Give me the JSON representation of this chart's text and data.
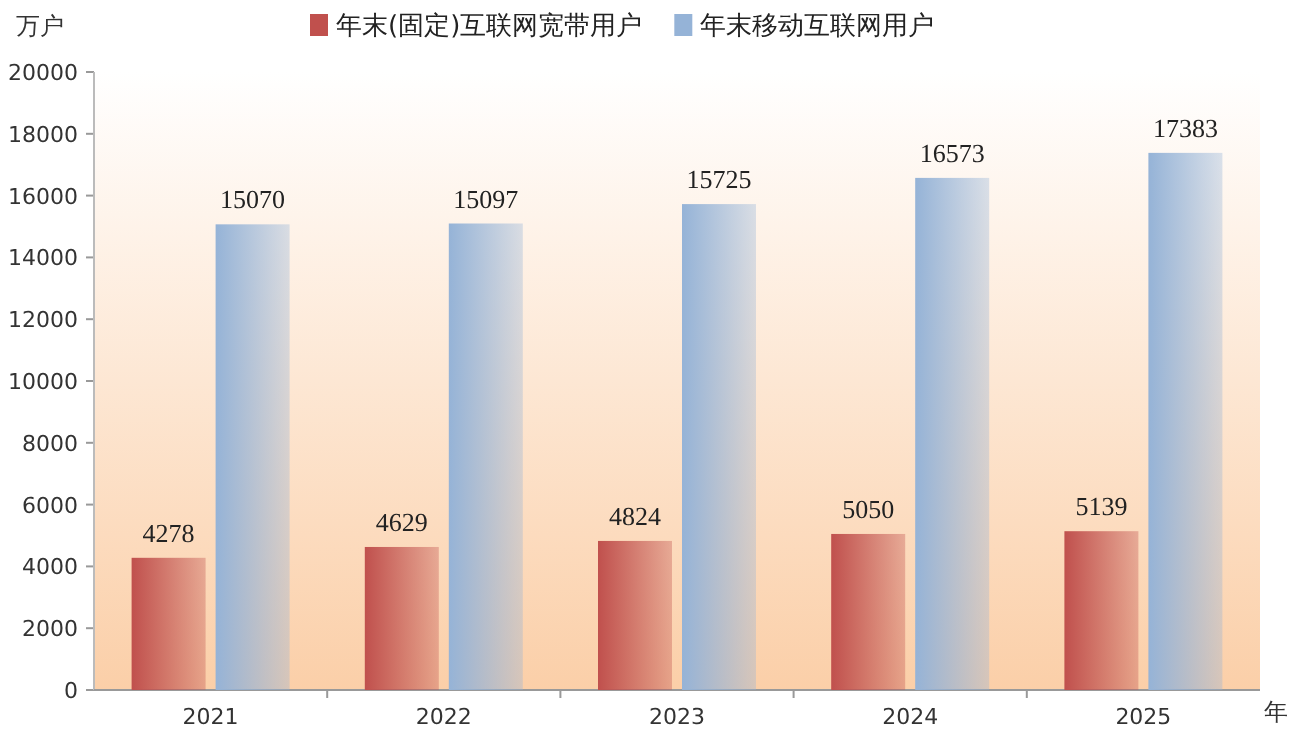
{
  "chart_data": {
    "type": "bar",
    "ylabel": "万户",
    "xlabel": "年",
    "categories": [
      "2021",
      "2022",
      "2023",
      "2024",
      "2025"
    ],
    "series": [
      {
        "name": "年末(固定)互联网宽带用户",
        "color": "#c0504d",
        "values": [
          4278,
          4629,
          4824,
          5050,
          5139
        ]
      },
      {
        "name": "年末移动互联网用户",
        "color": "#95b3d7",
        "values": [
          15070,
          15097,
          15725,
          16573,
          17383
        ]
      }
    ],
    "ylim": [
      0,
      20000
    ],
    "yticks": [
      0,
      2000,
      4000,
      6000,
      8000,
      10000,
      12000,
      14000,
      16000,
      18000,
      20000
    ],
    "data_labels": true,
    "legend": "top",
    "grid": false
  }
}
